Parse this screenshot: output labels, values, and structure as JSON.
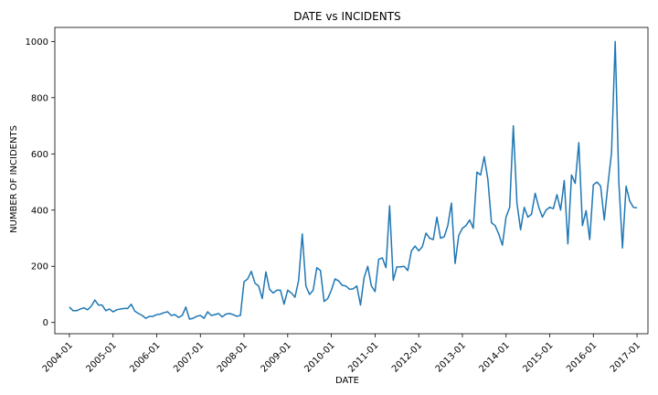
{
  "chart_data": {
    "type": "line",
    "title": "DATE vs INCIDENTS",
    "xlabel": "DATE",
    "ylabel": "NUMBER OF INCIDENTS",
    "grid": false,
    "legend": "none",
    "line_color": "#1f77b4",
    "xlim": [
      "2003-09",
      "2017-04"
    ],
    "ylim": [
      -40,
      1050
    ],
    "x_ticks": [
      "2004-01",
      "2005-01",
      "2006-01",
      "2007-01",
      "2008-01",
      "2009-01",
      "2010-01",
      "2011-01",
      "2012-01",
      "2013-01",
      "2014-01",
      "2015-01",
      "2016-01",
      "2017-01"
    ],
    "y_ticks": [
      0,
      200,
      400,
      600,
      800,
      1000
    ],
    "x": [
      "2004-01",
      "2004-02",
      "2004-03",
      "2004-04",
      "2004-05",
      "2004-06",
      "2004-07",
      "2004-08",
      "2004-09",
      "2004-10",
      "2004-11",
      "2004-12",
      "2005-01",
      "2005-02",
      "2005-03",
      "2005-04",
      "2005-05",
      "2005-06",
      "2005-07",
      "2005-08",
      "2005-09",
      "2005-10",
      "2005-11",
      "2005-12",
      "2006-01",
      "2006-02",
      "2006-03",
      "2006-04",
      "2006-05",
      "2006-06",
      "2006-07",
      "2006-08",
      "2006-09",
      "2006-10",
      "2006-11",
      "2006-12",
      "2007-01",
      "2007-02",
      "2007-03",
      "2007-04",
      "2007-05",
      "2007-06",
      "2007-07",
      "2007-08",
      "2007-09",
      "2007-10",
      "2007-11",
      "2007-12",
      "2008-01",
      "2008-02",
      "2008-03",
      "2008-04",
      "2008-05",
      "2008-06",
      "2008-07",
      "2008-08",
      "2008-09",
      "2008-10",
      "2008-11",
      "2008-12",
      "2009-01",
      "2009-02",
      "2009-03",
      "2009-04",
      "2009-05",
      "2009-06",
      "2009-07",
      "2009-08",
      "2009-09",
      "2009-10",
      "2009-11",
      "2009-12",
      "2010-01",
      "2010-02",
      "2010-03",
      "2010-04",
      "2010-05",
      "2010-06",
      "2010-07",
      "2010-08",
      "2010-09",
      "2010-10",
      "2010-11",
      "2010-12",
      "2011-01",
      "2011-02",
      "2011-03",
      "2011-04",
      "2011-05",
      "2011-06",
      "2011-07",
      "2011-08",
      "2011-09",
      "2011-10",
      "2011-11",
      "2011-12",
      "2012-01",
      "2012-02",
      "2012-03",
      "2012-04",
      "2012-05",
      "2012-06",
      "2012-07",
      "2012-08",
      "2012-09",
      "2012-10",
      "2012-11",
      "2012-12",
      "2013-01",
      "2013-02",
      "2013-03",
      "2013-04",
      "2013-05",
      "2013-06",
      "2013-07",
      "2013-08",
      "2013-09",
      "2013-10",
      "2013-11",
      "2013-12",
      "2014-01",
      "2014-02",
      "2014-03",
      "2014-04",
      "2014-05",
      "2014-06",
      "2014-07",
      "2014-08",
      "2014-09",
      "2014-10",
      "2014-11",
      "2014-12",
      "2015-01",
      "2015-02",
      "2015-03",
      "2015-04",
      "2015-05",
      "2015-06",
      "2015-07",
      "2015-08",
      "2015-09",
      "2015-10",
      "2015-11",
      "2015-12",
      "2016-01",
      "2016-02",
      "2016-03",
      "2016-04",
      "2016-05",
      "2016-06",
      "2016-07",
      "2016-08",
      "2016-09",
      "2016-10",
      "2016-11",
      "2016-12",
      "2017-01"
    ],
    "y": [
      55,
      42,
      42,
      48,
      52,
      45,
      58,
      80,
      62,
      62,
      42,
      48,
      38,
      45,
      48,
      50,
      50,
      65,
      40,
      32,
      25,
      15,
      22,
      22,
      28,
      30,
      35,
      38,
      25,
      28,
      18,
      25,
      55,
      12,
      15,
      22,
      25,
      15,
      38,
      25,
      28,
      32,
      20,
      30,
      32,
      28,
      22,
      25,
      145,
      155,
      182,
      140,
      130,
      85,
      180,
      118,
      105,
      115,
      115,
      65,
      115,
      105,
      90,
      150,
      315,
      130,
      100,
      115,
      195,
      185,
      75,
      85,
      115,
      155,
      148,
      132,
      130,
      118,
      120,
      130,
      62,
      160,
      200,
      130,
      110,
      225,
      230,
      195,
      415,
      150,
      198,
      198,
      200,
      185,
      255,
      272,
      255,
      270,
      318,
      300,
      295,
      375,
      300,
      305,
      345,
      425,
      210,
      310,
      335,
      345,
      365,
      335,
      535,
      525,
      590,
      510,
      355,
      345,
      315,
      275,
      375,
      410,
      700,
      425,
      330,
      410,
      375,
      385,
      460,
      410,
      375,
      400,
      410,
      405,
      455,
      400,
      505,
      280,
      525,
      495,
      640,
      345,
      398,
      295,
      490,
      500,
      485,
      365,
      490,
      605,
      1000,
      500,
      265,
      485,
      432,
      410,
      408
    ]
  }
}
